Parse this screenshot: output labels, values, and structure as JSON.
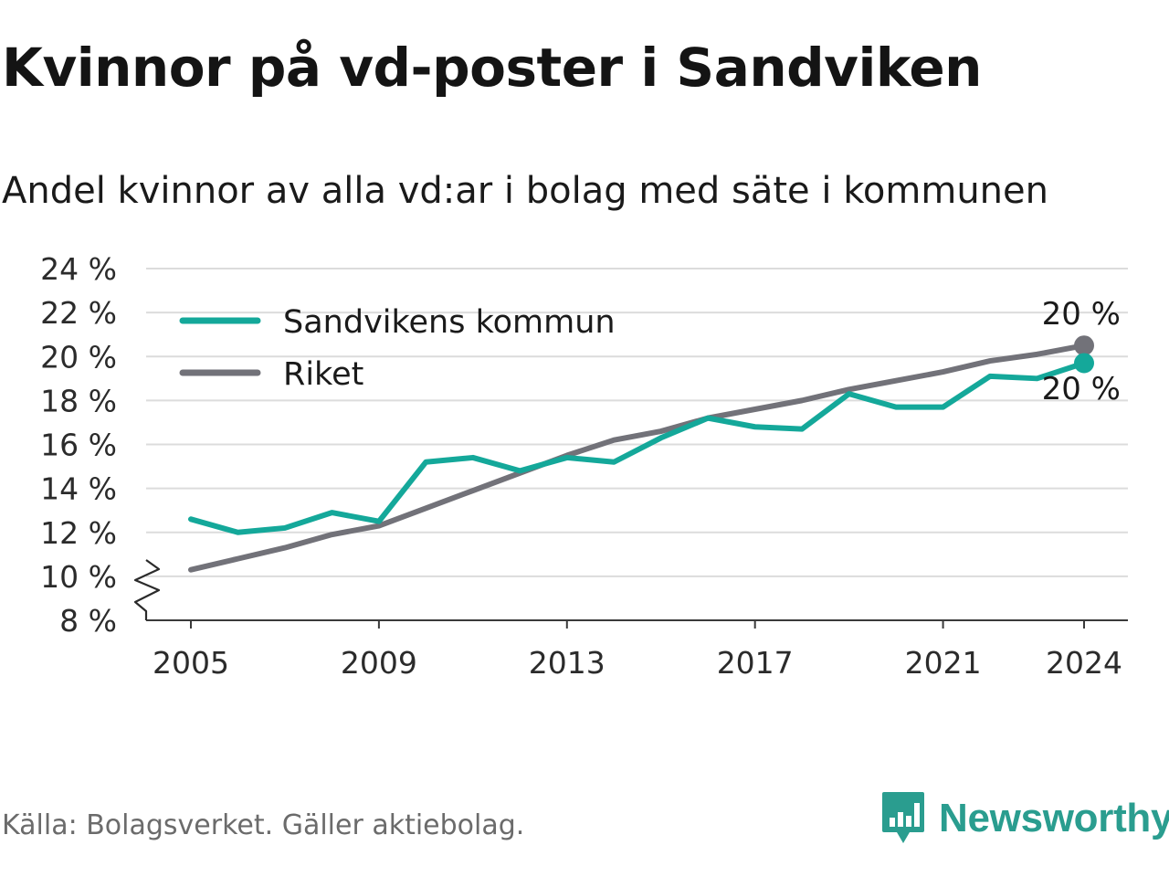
{
  "title": "Kvinnor på vd-poster i Sandviken",
  "subtitle": "Andel kvinnor av alla vd:ar i bolag med säte i kommunen",
  "source": "Källa: Bolagsverket. Gäller aktiebolag.",
  "brand": {
    "name": "Newsworthy",
    "icon": "newsworthy-logo-icon",
    "color": "#2a9d8f"
  },
  "chart_data": {
    "type": "line",
    "x": [
      2005,
      2006,
      2007,
      2008,
      2009,
      2010,
      2011,
      2012,
      2013,
      2014,
      2015,
      2016,
      2017,
      2018,
      2019,
      2020,
      2021,
      2022,
      2023,
      2024
    ],
    "x_ticks": [
      "2005",
      "2009",
      "2013",
      "2017",
      "2021",
      "2024"
    ],
    "y_ticks": [
      "8 %",
      "10 %",
      "12 %",
      "14 %",
      "16 %",
      "18 %",
      "20 %",
      "22 %",
      "24 %"
    ],
    "ylim": [
      8,
      24
    ],
    "axis_break": true,
    "grid": true,
    "legend_position": "top-left",
    "series": [
      {
        "name": "Sandvikens kommun",
        "color": "#14a89a",
        "values": [
          12.6,
          12.0,
          12.2,
          12.9,
          12.5,
          15.2,
          15.4,
          14.8,
          15.4,
          15.2,
          16.3,
          17.2,
          16.8,
          16.7,
          18.3,
          17.7,
          17.7,
          19.1,
          19.0,
          19.7
        ],
        "end_label": "20 %"
      },
      {
        "name": "Riket",
        "color": "#727279",
        "values": [
          10.3,
          10.8,
          11.3,
          11.9,
          12.3,
          13.1,
          13.9,
          14.7,
          15.5,
          16.2,
          16.6,
          17.2,
          17.6,
          18.0,
          18.5,
          18.9,
          19.3,
          19.8,
          20.1,
          20.5
        ],
        "end_label": "20 %"
      }
    ]
  }
}
